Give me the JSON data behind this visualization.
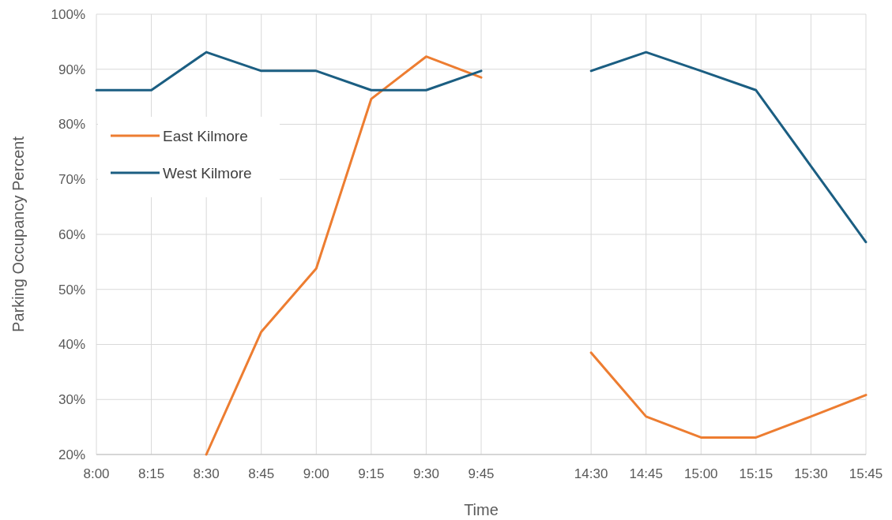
{
  "chart_data": {
    "type": "line",
    "xlabel": "Time",
    "ylabel": "Parking Occupancy Percent",
    "categories": [
      "8:00",
      "8:15",
      "8:30",
      "8:45",
      "9:00",
      "9:15",
      "9:30",
      "9:45",
      null,
      "14:30",
      "14:45",
      "15:00",
      "15:15",
      "15:30",
      "15:45"
    ],
    "series": [
      {
        "name": "East Kilmore",
        "color": "#ed7d31",
        "values": [
          null,
          null,
          20,
          42.3,
          53.8,
          84.6,
          92.3,
          88.5,
          null,
          38.5,
          26.9,
          23.1,
          23.1,
          26.9,
          30.8
        ]
      },
      {
        "name": "West Kilmore",
        "color": "#1b5e82",
        "values": [
          86.2,
          86.2,
          93.1,
          89.7,
          89.7,
          86.2,
          86.2,
          89.7,
          null,
          89.7,
          93.1,
          89.7,
          86.2,
          72.4,
          58.6
        ]
      }
    ],
    "ylim": [
      20,
      100
    ],
    "yticks": [
      {
        "value": 20,
        "label": "20%"
      },
      {
        "value": 30,
        "label": "30%"
      },
      {
        "value": 40,
        "label": "40%"
      },
      {
        "value": 50,
        "label": "50%"
      },
      {
        "value": 60,
        "label": "60%"
      },
      {
        "value": 70,
        "label": "70%"
      },
      {
        "value": 80,
        "label": "80%"
      },
      {
        "value": 90,
        "label": "90%"
      },
      {
        "value": 100,
        "label": "100%"
      }
    ],
    "grid": true,
    "legend": "top left"
  }
}
